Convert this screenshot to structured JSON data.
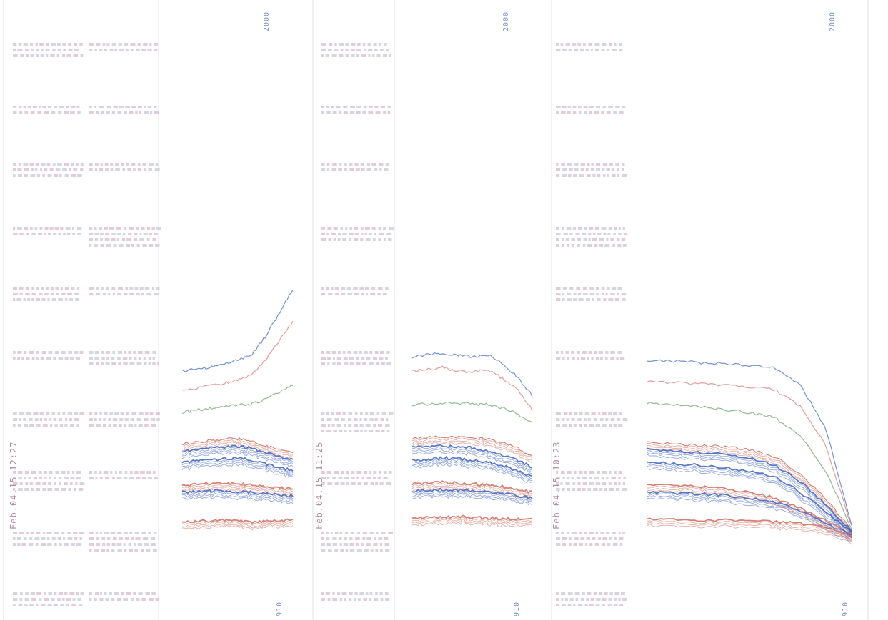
{
  "document": {
    "panels": [
      {
        "timestamp": "Feb.04.15 12:27",
        "corner_label": "2000",
        "bottom_label": "910"
      },
      {
        "timestamp": "Feb.04.15 11:25",
        "corner_label": "2000",
        "bottom_label": "910"
      },
      {
        "timestamp": "Feb.04.15 10:23",
        "corner_label": "2000",
        "bottom_label": "910"
      }
    ]
  },
  "chart_data": [
    {
      "type": "line",
      "series": [
        {
          "color": "#5a7fd0",
          "values": [
            520,
            518,
            515,
            510,
            505,
            498,
            472,
            440,
            405
          ]
        },
        {
          "color": "#e08a8a",
          "values": [
            548,
            545,
            540,
            538,
            532,
            525,
            505,
            478,
            450
          ]
        },
        {
          "color": "#7fae7f",
          "values": [
            578,
            575,
            572,
            570,
            568,
            566,
            560,
            550,
            540
          ]
        },
        {
          "color": "#d06a5a",
          "values": [
            622,
            620,
            618,
            616,
            615,
            617,
            625,
            630,
            635
          ]
        },
        {
          "color": "#3a5fc0",
          "values": [
            633,
            630,
            628,
            627,
            626,
            628,
            635,
            640,
            645
          ]
        },
        {
          "color": "#3a5fc0",
          "values": [
            648,
            646,
            645,
            643,
            642,
            645,
            650,
            655,
            660
          ]
        },
        {
          "color": "#d06a5a",
          "values": [
            680,
            679,
            678,
            677,
            678,
            680,
            682,
            684,
            685
          ]
        },
        {
          "color": "#3a5fc0",
          "values": [
            690,
            689,
            688,
            688,
            689,
            690,
            692,
            694,
            695
          ]
        },
        {
          "color": "#d06a5a",
          "values": [
            730,
            731,
            730,
            729,
            730,
            732,
            731,
            730,
            729
          ]
        }
      ]
    },
    {
      "type": "line",
      "series": [
        {
          "color": "#5a7fd0",
          "values": [
            500,
            497,
            495,
            498,
            500,
            497,
            510,
            528,
            555
          ]
        },
        {
          "color": "#e08a8a",
          "values": [
            520,
            518,
            515,
            520,
            522,
            518,
            530,
            545,
            575
          ]
        },
        {
          "color": "#7fae7f",
          "values": [
            568,
            566,
            565,
            565,
            566,
            567,
            572,
            580,
            592
          ]
        },
        {
          "color": "#d06a5a",
          "values": [
            615,
            614,
            612,
            613,
            614,
            616,
            620,
            628,
            640
          ]
        },
        {
          "color": "#3a5fc0",
          "values": [
            628,
            626,
            625,
            626,
            628,
            632,
            638,
            645,
            655
          ]
        },
        {
          "color": "#3a5fc0",
          "values": [
            645,
            644,
            642,
            643,
            645,
            648,
            652,
            660,
            668
          ]
        },
        {
          "color": "#d06a5a",
          "values": [
            678,
            677,
            676,
            677,
            678,
            680,
            682,
            686,
            690
          ]
        },
        {
          "color": "#3a5fc0",
          "values": [
            688,
            687,
            686,
            687,
            688,
            690,
            692,
            695,
            698
          ]
        },
        {
          "color": "#d06a5a",
          "values": [
            725,
            726,
            725,
            724,
            725,
            726,
            727,
            728,
            728
          ]
        }
      ]
    },
    {
      "type": "line",
      "series": [
        {
          "color": "#5a7fd0",
          "values": [
            505,
            506,
            508,
            510,
            512,
            515,
            540,
            600,
            735
          ]
        },
        {
          "color": "#e08a8a",
          "values": [
            535,
            536,
            538,
            540,
            542,
            546,
            570,
            625,
            738
          ]
        },
        {
          "color": "#7fae7f",
          "values": [
            565,
            567,
            570,
            574,
            578,
            585,
            610,
            660,
            740
          ]
        },
        {
          "color": "#d06a5a",
          "values": [
            620,
            622,
            624,
            626,
            630,
            640,
            665,
            700,
            742
          ]
        },
        {
          "color": "#3a5fc0",
          "values": [
            630,
            632,
            634,
            637,
            642,
            652,
            675,
            708,
            744
          ]
        },
        {
          "color": "#3a5fc0",
          "values": [
            648,
            650,
            652,
            656,
            660,
            668,
            690,
            718,
            746
          ]
        },
        {
          "color": "#d06a5a",
          "values": [
            678,
            680,
            682,
            685,
            690,
            698,
            712,
            730,
            748
          ]
        },
        {
          "color": "#3a5fc0",
          "values": [
            690,
            691,
            692,
            694,
            698,
            704,
            716,
            734,
            750
          ]
        },
        {
          "color": "#d06a5a",
          "values": [
            728,
            728,
            729,
            729,
            730,
            731,
            734,
            740,
            752
          ]
        }
      ]
    }
  ]
}
